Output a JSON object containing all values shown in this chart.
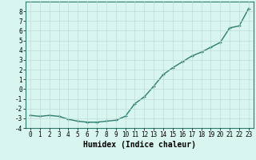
{
  "x": [
    0,
    1,
    2,
    3,
    4,
    5,
    6,
    7,
    8,
    9,
    10,
    11,
    12,
    13,
    14,
    15,
    16,
    17,
    18,
    19,
    20,
    21,
    22,
    23
  ],
  "y": [
    -2.7,
    -2.8,
    -2.7,
    -2.8,
    -3.1,
    -3.3,
    -3.4,
    -3.4,
    -3.3,
    -3.2,
    -2.8,
    -1.5,
    -0.8,
    0.3,
    1.5,
    2.2,
    2.8,
    3.4,
    3.8,
    4.3,
    4.8,
    6.3,
    6.5,
    8.3
  ],
  "line_color": "#2d7d6e",
  "marker": "+",
  "marker_size": 3.5,
  "background_color": "#d8f5f0",
  "grid_color": "#c0dcd8",
  "axis_color": "#2d7d6e",
  "xlabel": "Humidex (Indice chaleur)",
  "xlim": [
    -0.5,
    23.5
  ],
  "ylim": [
    -4,
    9
  ],
  "yticks": [
    -4,
    -3,
    -2,
    -1,
    0,
    1,
    2,
    3,
    4,
    5,
    6,
    7,
    8
  ],
  "xticks": [
    0,
    1,
    2,
    3,
    4,
    5,
    6,
    7,
    8,
    9,
    10,
    11,
    12,
    13,
    14,
    15,
    16,
    17,
    18,
    19,
    20,
    21,
    22,
    23
  ],
  "tick_font_size": 5.5,
  "xlabel_font_size": 7.0,
  "line_width": 1.0,
  "marker_edge_width": 0.8
}
